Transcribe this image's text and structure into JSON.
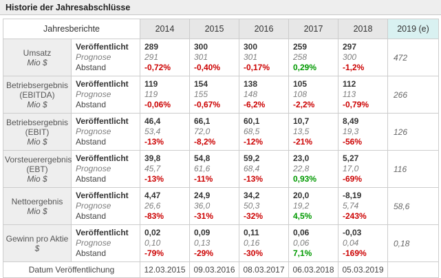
{
  "title": "Historie der Jahresabschlüsse",
  "colors": {
    "negative": "#cc0000",
    "positive": "#009900",
    "estimate_header_bg": "#d9f1f1",
    "header_bg": "#e7e7e7",
    "label_bg": "#eeeeee"
  },
  "table": {
    "corner_label": "Jahresberichte",
    "years": [
      "2014",
      "2015",
      "2016",
      "2017",
      "2018"
    ],
    "estimate_year": "2019 (e)",
    "sub_labels": [
      "Veröffentlicht",
      "Prognose",
      "Abstand"
    ],
    "rows": [
      {
        "label": "Umsatz",
        "unit": "Mio $",
        "cells": [
          {
            "pub": "289",
            "prog": "291",
            "gap": "-0,72%",
            "gap_color": "red"
          },
          {
            "pub": "300",
            "prog": "301",
            "gap": "-0,40%",
            "gap_color": "red"
          },
          {
            "pub": "300",
            "prog": "301",
            "gap": "-0,17%",
            "gap_color": "red"
          },
          {
            "pub": "259",
            "prog": "258",
            "gap": "0,29%",
            "gap_color": "green"
          },
          {
            "pub": "297",
            "prog": "300",
            "gap": "-1,2%",
            "gap_color": "red"
          }
        ],
        "estimate": "472"
      },
      {
        "label": "Betriebsergebnis (EBITDA)",
        "unit": "Mio $",
        "cells": [
          {
            "pub": "119",
            "prog": "119",
            "gap": "-0,06%",
            "gap_color": "red"
          },
          {
            "pub": "154",
            "prog": "155",
            "gap": "-0,67%",
            "gap_color": "red"
          },
          {
            "pub": "138",
            "prog": "148",
            "gap": "-6,2%",
            "gap_color": "red"
          },
          {
            "pub": "105",
            "prog": "108",
            "gap": "-2,2%",
            "gap_color": "red"
          },
          {
            "pub": "112",
            "prog": "113",
            "gap": "-0,79%",
            "gap_color": "red"
          }
        ],
        "estimate": "266"
      },
      {
        "label": "Betriebsergebnis (EBIT)",
        "unit": "Mio $",
        "cells": [
          {
            "pub": "46,4",
            "prog": "53,4",
            "gap": "-13%",
            "gap_color": "red"
          },
          {
            "pub": "66,1",
            "prog": "72,0",
            "gap": "-8,2%",
            "gap_color": "red"
          },
          {
            "pub": "60,1",
            "prog": "68,5",
            "gap": "-12%",
            "gap_color": "red"
          },
          {
            "pub": "10,7",
            "prog": "13,5",
            "gap": "-21%",
            "gap_color": "red"
          },
          {
            "pub": "8,49",
            "prog": "19,3",
            "gap": "-56%",
            "gap_color": "red"
          }
        ],
        "estimate": "126"
      },
      {
        "label": "Vorsteuerergebnis (EBT)",
        "unit": "Mio $",
        "cells": [
          {
            "pub": "39,8",
            "prog": "45,7",
            "gap": "-13%",
            "gap_color": "red"
          },
          {
            "pub": "54,8",
            "prog": "61,6",
            "gap": "-11%",
            "gap_color": "red"
          },
          {
            "pub": "59,2",
            "prog": "68,4",
            "gap": "-13%",
            "gap_color": "red"
          },
          {
            "pub": "23,0",
            "prog": "22,8",
            "gap": "0,93%",
            "gap_color": "green"
          },
          {
            "pub": "5,27",
            "prog": "17,0",
            "gap": "-69%",
            "gap_color": "red"
          }
        ],
        "estimate": "116"
      },
      {
        "label": "Nettoergebnis",
        "unit": "Mio $",
        "cells": [
          {
            "pub": "4,47",
            "prog": "26,6",
            "gap": "-83%",
            "gap_color": "red"
          },
          {
            "pub": "24,9",
            "prog": "36,0",
            "gap": "-31%",
            "gap_color": "red"
          },
          {
            "pub": "34,2",
            "prog": "50,3",
            "gap": "-32%",
            "gap_color": "red"
          },
          {
            "pub": "20,0",
            "prog": "19,2",
            "gap": "4,5%",
            "gap_color": "green"
          },
          {
            "pub": "-8,19",
            "prog": "5,74",
            "gap": "-243%",
            "gap_color": "red"
          }
        ],
        "estimate": "58,6"
      },
      {
        "label": "Gewinn pro Aktie",
        "unit": "$",
        "cells": [
          {
            "pub": "0,02",
            "prog": "0,10",
            "gap": "-79%",
            "gap_color": "red"
          },
          {
            "pub": "0,09",
            "prog": "0,13",
            "gap": "-29%",
            "gap_color": "red"
          },
          {
            "pub": "0,11",
            "prog": "0,16",
            "gap": "-30%",
            "gap_color": "red"
          },
          {
            "pub": "0,06",
            "prog": "0,06",
            "gap": "7,1%",
            "gap_color": "green"
          },
          {
            "pub": "-0,03",
            "prog": "0,04",
            "gap": "-169%",
            "gap_color": "red"
          }
        ],
        "estimate": "0,18"
      }
    ],
    "footer": {
      "label": "Datum Veröffentlichung",
      "dates": [
        "12.03.2015",
        "09.03.2016",
        "08.03.2017",
        "06.03.2018",
        "05.03.2019"
      ],
      "estimate": ""
    }
  }
}
